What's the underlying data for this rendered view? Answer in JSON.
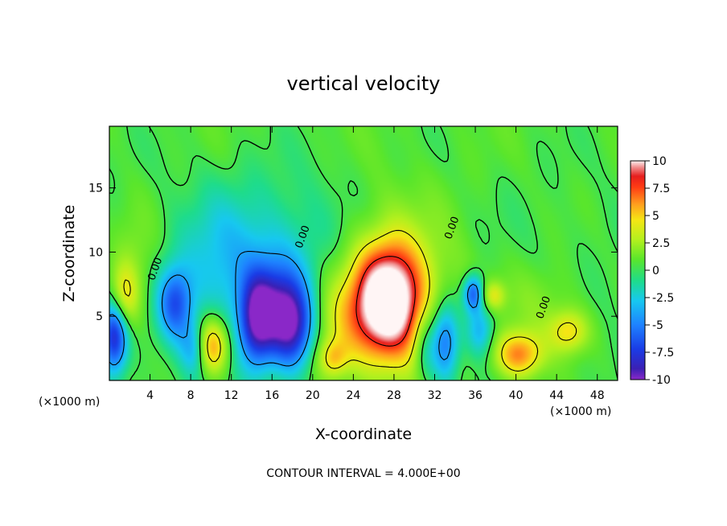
{
  "chart_data": {
    "type": "heatmap",
    "title": "vertical velocity",
    "xlabel": "X-coordinate",
    "ylabel": "Z-coordinate",
    "x_unit": "(×1000 m)",
    "y_unit": "(×1000 m)",
    "x_ticks": [
      4,
      8,
      12,
      16,
      20,
      24,
      28,
      32,
      36,
      40,
      44,
      48
    ],
    "y_ticks": [
      5,
      10,
      15
    ],
    "xlim": [
      0,
      50
    ],
    "ylim": [
      0,
      19.8
    ],
    "colorbar": {
      "ticks": [
        10,
        7.5,
        5,
        2.5,
        0,
        -2.5,
        -5,
        -7.5,
        -10
      ],
      "range": [
        -10,
        10
      ]
    },
    "contour_interval_text": "CONTOUR INTERVAL = 4.000E+00",
    "contour_labels": [
      {
        "text": "0.00",
        "x": 4.8,
        "y": 8.6
      },
      {
        "text": "0.00",
        "x": 19.3,
        "y": 11.1
      },
      {
        "text": "0.00",
        "x": 34.0,
        "y": 11.8
      },
      {
        "text": "0.00",
        "x": 43.0,
        "y": 5.6
      }
    ],
    "features": [
      {
        "kind": "updraft",
        "x": 27.5,
        "y": 6.3,
        "sx": 2.3,
        "sy": 3.0,
        "w": 11
      },
      {
        "kind": "updraft",
        "x": 28.0,
        "y": 6.8,
        "sx": 4.8,
        "sy": 5.0,
        "w": 3
      },
      {
        "kind": "updraft",
        "x": 10.0,
        "y": 2.7,
        "sx": 1.2,
        "sy": 1.6,
        "w": 7.5
      },
      {
        "kind": "updraft",
        "x": 40.3,
        "y": 2.0,
        "sx": 1.7,
        "sy": 1.3,
        "w": 6.5
      },
      {
        "kind": "updraft",
        "x": 45.2,
        "y": 3.8,
        "sx": 1.4,
        "sy": 1.2,
        "w": 4.5
      },
      {
        "kind": "updraft",
        "x": 1.4,
        "y": 6.4,
        "sx": 1.0,
        "sy": 1.8,
        "w": 4.5
      },
      {
        "kind": "updraft",
        "x": 22.0,
        "y": 1.7,
        "sx": 1.0,
        "sy": 1.0,
        "w": 3.5
      },
      {
        "kind": "updraft",
        "x": 37.8,
        "y": 6.6,
        "sx": 0.8,
        "sy": 0.8,
        "w": 3.5
      },
      {
        "kind": "updraft",
        "x": 23.0,
        "y": 4.5,
        "sx": 3.0,
        "sy": 3.0,
        "w": 2.5
      },
      {
        "kind": "downdraft",
        "x": 0.5,
        "y": 3.5,
        "sx": 0.9,
        "sy": 2.0,
        "w": -8.5
      },
      {
        "kind": "downdraft",
        "x": 14.5,
        "y": 4.5,
        "sx": 1.2,
        "sy": 2.5,
        "w": -7.5
      },
      {
        "kind": "downdraft",
        "x": 18.0,
        "y": 4.0,
        "sx": 1.5,
        "sy": 2.3,
        "w": -8.0
      },
      {
        "kind": "downdraft",
        "x": 16.5,
        "y": 6.0,
        "sx": 2.0,
        "sy": 2.5,
        "w": -5.0
      },
      {
        "kind": "downdraft",
        "x": 6.5,
        "y": 6.0,
        "sx": 1.2,
        "sy": 2.0,
        "w": -6.0
      },
      {
        "kind": "downdraft",
        "x": 33.0,
        "y": 3.0,
        "sx": 1.0,
        "sy": 2.2,
        "w": -6.5
      },
      {
        "kind": "downdraft",
        "x": 35.8,
        "y": 6.8,
        "sx": 0.7,
        "sy": 1.0,
        "w": -6.5
      },
      {
        "kind": "downdraft",
        "x": 8.5,
        "y": 2.5,
        "sx": 1.0,
        "sy": 1.5,
        "w": -4.5
      },
      {
        "kind": "downdraft",
        "x": 11.0,
        "y": 8.5,
        "sx": 3.0,
        "sy": 4.0,
        "w": -2.5
      },
      {
        "kind": "downdraft",
        "x": 18.0,
        "y": 10.0,
        "sx": 5.0,
        "sy": 4.0,
        "w": -2.0
      },
      {
        "kind": "downdraft",
        "x": 36.5,
        "y": 4.0,
        "sx": 1.0,
        "sy": 1.5,
        "w": -4.0
      },
      {
        "kind": "downdraft",
        "x": 31.0,
        "y": 2.5,
        "sx": 0.8,
        "sy": 2.0,
        "w": -3.0
      },
      {
        "kind": "updraft",
        "x": 2.5,
        "y": 9.0,
        "sx": 1.5,
        "sy": 3.0,
        "w": 1.5
      },
      {
        "kind": "updraft",
        "x": 42.5,
        "y": 6.0,
        "sx": 2.5,
        "sy": 2.0,
        "w": 1.5
      }
    ]
  }
}
